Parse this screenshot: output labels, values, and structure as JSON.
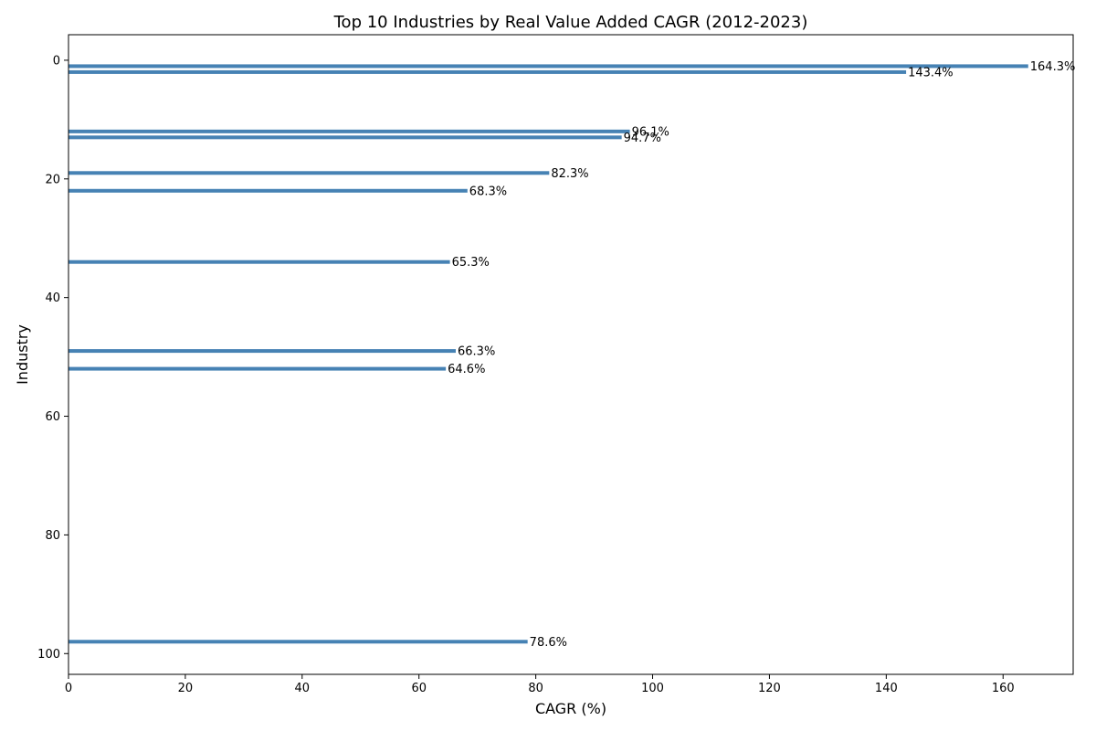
{
  "chart_data": {
    "type": "bar",
    "orientation": "horizontal",
    "title": "Top 10 Industries by Real Value Added CAGR (2012-2023)",
    "xlabel": "CAGR (%)",
    "ylabel": "Industry",
    "xlim": [
      0,
      172
    ],
    "ylim": [
      -4.3,
      103.5
    ],
    "y_inverted": true,
    "x_ticks": [
      0,
      20,
      40,
      60,
      80,
      100,
      120,
      140,
      160
    ],
    "y_ticks": [
      0,
      20,
      40,
      60,
      80,
      100
    ],
    "grid": false,
    "bar_color": "#4682b4",
    "value_suffix": "%",
    "points": [
      {
        "y": 1,
        "value": 164.3,
        "label": "164.3%"
      },
      {
        "y": 2,
        "value": 143.4,
        "label": "143.4%"
      },
      {
        "y": 12,
        "value": 96.1,
        "label": "96.1%"
      },
      {
        "y": 13,
        "value": 94.7,
        "label": "94.7%"
      },
      {
        "y": 19,
        "value": 82.3,
        "label": "82.3%"
      },
      {
        "y": 22,
        "value": 68.3,
        "label": "68.3%"
      },
      {
        "y": 34,
        "value": 65.3,
        "label": "65.3%"
      },
      {
        "y": 49,
        "value": 66.3,
        "label": "66.3%"
      },
      {
        "y": 52,
        "value": 64.6,
        "label": "64.6%"
      },
      {
        "y": 98,
        "value": 78.6,
        "label": "78.6%"
      }
    ]
  }
}
